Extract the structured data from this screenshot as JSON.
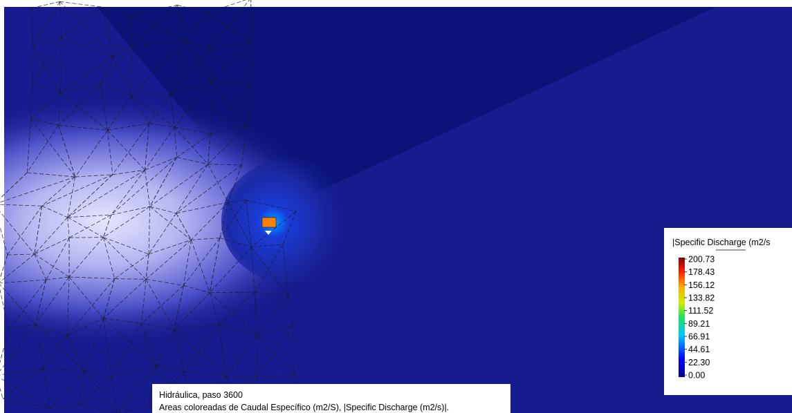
{
  "legend": {
    "title": "|Specific Discharge (m2/s",
    "labels": [
      "200.73",
      "178.43",
      "156.12",
      "133.82",
      "111.52",
      "89.21",
      "66.91",
      "44.61",
      "22.30",
      "0.00"
    ]
  },
  "caption": {
    "line1": "Hidráulica, paso 3600",
    "line2": "Areas coloreadas de Caudal Específico (m2/S), |Specific Discharge (m2/s)|."
  }
}
